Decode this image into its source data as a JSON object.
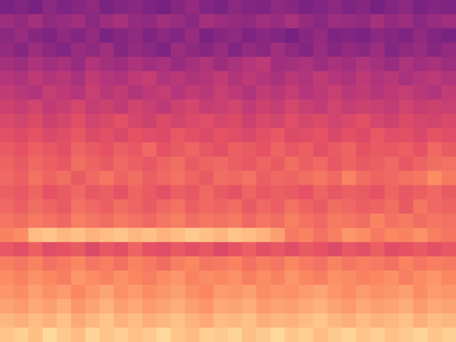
{
  "chart_data": {
    "type": "heatmap",
    "color": "magma",
    "zlim": [
      0,
      100
    ],
    "tick_labels": false,
    "cells": [
      [
        36,
        38,
        35,
        40,
        37,
        39,
        41,
        36,
        38,
        40,
        37,
        35,
        39,
        42,
        38,
        36,
        40,
        38,
        37,
        41,
        39,
        36,
        38,
        40,
        37,
        39,
        35,
        38,
        40,
        36,
        38,
        37
      ],
      [
        44,
        42,
        46,
        41,
        43,
        45,
        40,
        44,
        47,
        42,
        41,
        45,
        43,
        40,
        46,
        44,
        42,
        41,
        45,
        43,
        47,
        42,
        40,
        44,
        43,
        41,
        46,
        42,
        44,
        40,
        43,
        45
      ],
      [
        40,
        43,
        39,
        37,
        41,
        38,
        42,
        36,
        39,
        41,
        37,
        40,
        38,
        43,
        36,
        39,
        41,
        37,
        40,
        38,
        35,
        39,
        42,
        37,
        38,
        36,
        40,
        39,
        37,
        41,
        38,
        36
      ],
      [
        42,
        39,
        44,
        40,
        38,
        43,
        41,
        45,
        39,
        42,
        40,
        37,
        44,
        41,
        39,
        43,
        38,
        42,
        40,
        45,
        41,
        38,
        43,
        39,
        42,
        40,
        44,
        38,
        41,
        43,
        39,
        42
      ],
      [
        46,
        44,
        48,
        45,
        47,
        43,
        49,
        46,
        44,
        48,
        45,
        47,
        43,
        46,
        49,
        44,
        47,
        50,
        52,
        45,
        46,
        48,
        44,
        47,
        45,
        49,
        46,
        43,
        48,
        45,
        47,
        44
      ],
      [
        50,
        48,
        52,
        49,
        51,
        47,
        53,
        50,
        48,
        52,
        54,
        49,
        51,
        48,
        50,
        53,
        49,
        52,
        50,
        47,
        51,
        49,
        53,
        50,
        48,
        52,
        49,
        51,
        47,
        50,
        52,
        49
      ],
      [
        53,
        51,
        49,
        54,
        52,
        50,
        55,
        51,
        53,
        49,
        52,
        54,
        50,
        53,
        51,
        55,
        52,
        49,
        53,
        51,
        54,
        50,
        52,
        55,
        51,
        53,
        50,
        52,
        54,
        51,
        49,
        53
      ],
      [
        56,
        54,
        57,
        53,
        55,
        58,
        54,
        56,
        53,
        57,
        55,
        52,
        56,
        58,
        54,
        55,
        57,
        53,
        56,
        54,
        58,
        55,
        53,
        57,
        54,
        56,
        55,
        53,
        57,
        54,
        56,
        55
      ],
      [
        59,
        57,
        60,
        56,
        58,
        61,
        57,
        59,
        62,
        58,
        56,
        60,
        57,
        59,
        61,
        58,
        60,
        56,
        59,
        57,
        61,
        58,
        60,
        57,
        59,
        62,
        58,
        56,
        60,
        58,
        57,
        59
      ],
      [
        62,
        60,
        63,
        59,
        61,
        64,
        60,
        62,
        59,
        63,
        61,
        60,
        64,
        62,
        60,
        63,
        61,
        59,
        62,
        64,
        60,
        61,
        63,
        59,
        62,
        60,
        64,
        61,
        62,
        59,
        63,
        61
      ],
      [
        65,
        63,
        66,
        64,
        62,
        67,
        65,
        63,
        66,
        64,
        68,
        63,
        65,
        67,
        64,
        62,
        66,
        65,
        63,
        67,
        64,
        66,
        62,
        65,
        67,
        63,
        65,
        64,
        66,
        63,
        68,
        65
      ],
      [
        67,
        65,
        68,
        66,
        64,
        69,
        67,
        65,
        68,
        66,
        64,
        67,
        69,
        65,
        67,
        68,
        66,
        64,
        67,
        65,
        69,
        66,
        68,
        64,
        67,
        65,
        66,
        68,
        64,
        67,
        69,
        70
      ],
      [
        68,
        66,
        70,
        67,
        69,
        65,
        68,
        71,
        67,
        69,
        66,
        68,
        70,
        67,
        65,
        69,
        68,
        70,
        66,
        68,
        67,
        69,
        71,
        68,
        74,
        69,
        67,
        68,
        70,
        71,
        76,
        72
      ],
      [
        66,
        64,
        67,
        63,
        65,
        68,
        64,
        66,
        63,
        67,
        65,
        62,
        66,
        64,
        68,
        65,
        63,
        67,
        64,
        66,
        65,
        63,
        67,
        64,
        66,
        65,
        63,
        67,
        64,
        66,
        68,
        65
      ],
      [
        68,
        66,
        69,
        67,
        65,
        70,
        68,
        66,
        69,
        67,
        65,
        68,
        70,
        66,
        68,
        67,
        69,
        65,
        68,
        66,
        70,
        67,
        65,
        69,
        68,
        66,
        67,
        69,
        65,
        71,
        68,
        67
      ],
      [
        71,
        69,
        72,
        70,
        68,
        73,
        71,
        69,
        72,
        70,
        68,
        71,
        73,
        69,
        71,
        70,
        72,
        68,
        71,
        69,
        73,
        70,
        68,
        72,
        71,
        69,
        74,
        70,
        72,
        69,
        71,
        70
      ],
      [
        74,
        76,
        86,
        88,
        85,
        87,
        84,
        86,
        88,
        85,
        87,
        84,
        86,
        89,
        87,
        85,
        88,
        86,
        84,
        80,
        72,
        74,
        70,
        73,
        78,
        76,
        72,
        75,
        74,
        77,
        73,
        71
      ],
      [
        64,
        62,
        66,
        61,
        63,
        65,
        60,
        64,
        62,
        67,
        63,
        61,
        65,
        62,
        64,
        60,
        63,
        66,
        62,
        64,
        61,
        65,
        63,
        60,
        64,
        62,
        66,
        61,
        63,
        65,
        62,
        64
      ],
      [
        73,
        71,
        74,
        70,
        72,
        75,
        71,
        73,
        70,
        74,
        72,
        69,
        73,
        75,
        71,
        72,
        74,
        70,
        73,
        71,
        75,
        72,
        70,
        74,
        71,
        73,
        72,
        70,
        74,
        71,
        73,
        72
      ],
      [
        76,
        74,
        77,
        75,
        73,
        78,
        76,
        74,
        77,
        75,
        73,
        76,
        78,
        74,
        76,
        75,
        77,
        73,
        76,
        74,
        78,
        75,
        73,
        77,
        76,
        74,
        75,
        77,
        73,
        76,
        78,
        75
      ],
      [
        78,
        76,
        80,
        77,
        79,
        75,
        78,
        81,
        77,
        79,
        76,
        78,
        80,
        77,
        75,
        79,
        78,
        80,
        76,
        78,
        77,
        79,
        81,
        78,
        76,
        79,
        77,
        78,
        80,
        76,
        79,
        78
      ],
      [
        81,
        79,
        82,
        80,
        83,
        78,
        81,
        84,
        80,
        82,
        79,
        81,
        83,
        80,
        78,
        82,
        81,
        83,
        79,
        81,
        80,
        82,
        84,
        81,
        79,
        82,
        80,
        81,
        83,
        79,
        82,
        81
      ],
      [
        85,
        83,
        86,
        84,
        87,
        82,
        85,
        88,
        84,
        86,
        83,
        85,
        87,
        84,
        82,
        86,
        85,
        87,
        83,
        85,
        84,
        86,
        88,
        85,
        83,
        86,
        84,
        85,
        87,
        83,
        86,
        85
      ],
      [
        88,
        90,
        87,
        92,
        89,
        86,
        91,
        88,
        90,
        87,
        89,
        92,
        88,
        86,
        90,
        89,
        91,
        87,
        89,
        92,
        88,
        90,
        86,
        89,
        91,
        88,
        90,
        87,
        89,
        91,
        88,
        90
      ]
    ]
  }
}
